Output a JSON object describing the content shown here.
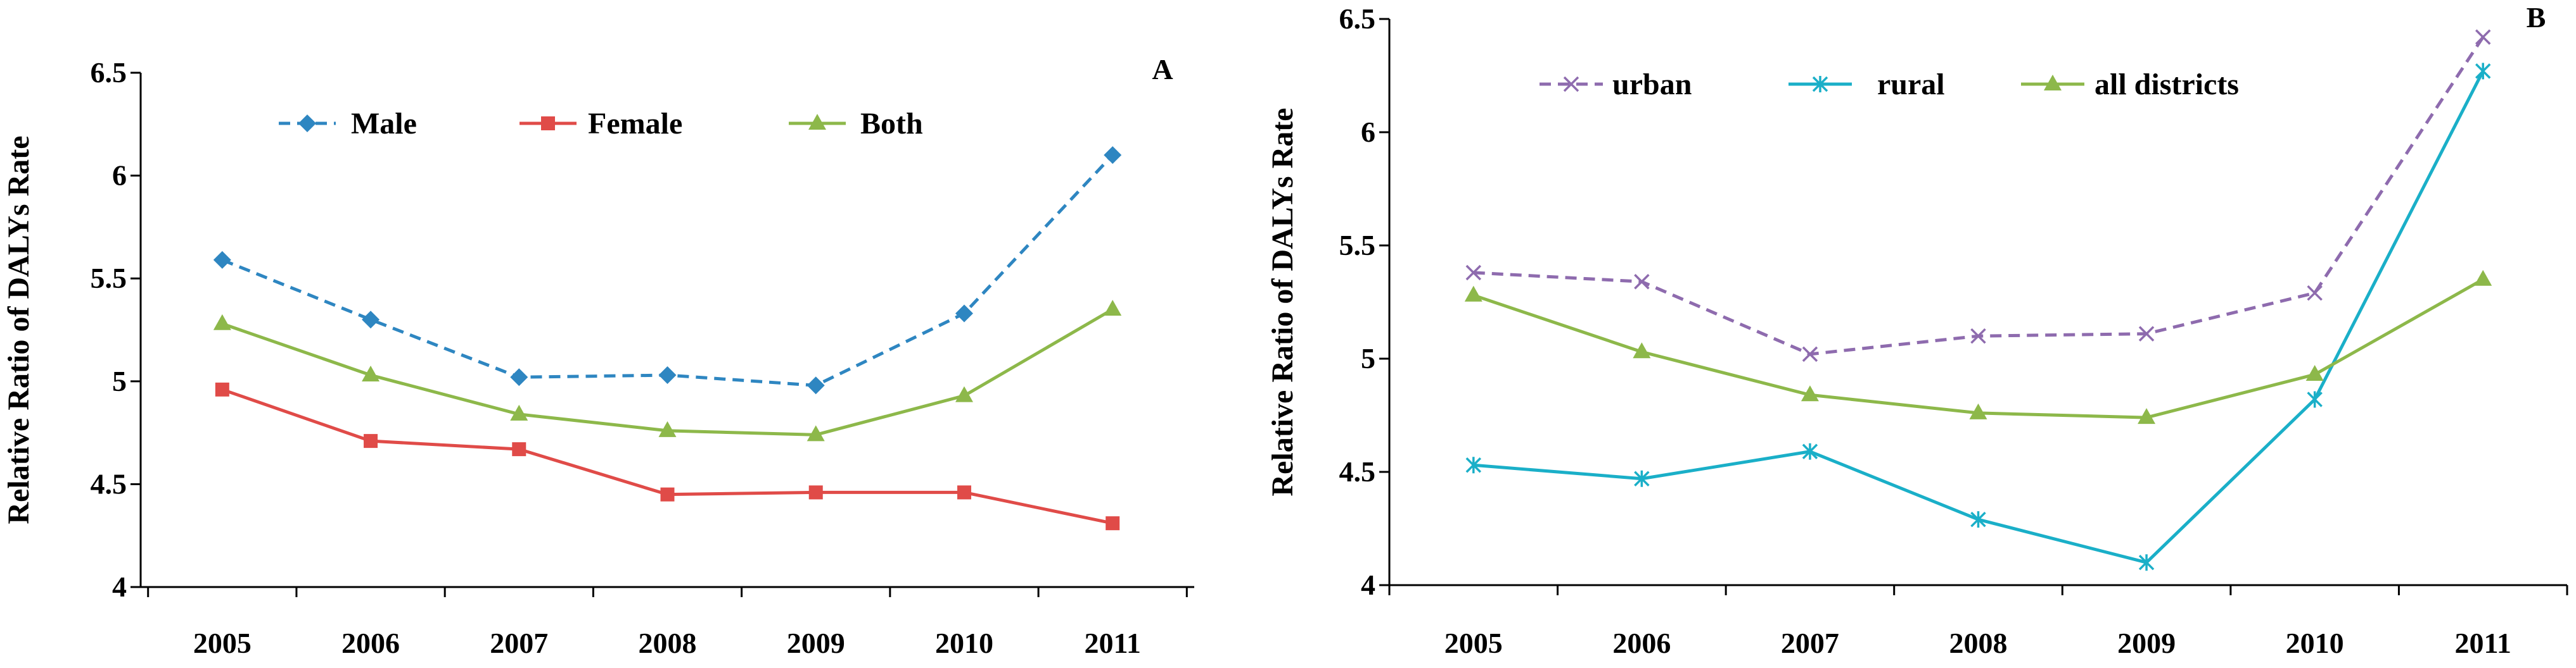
{
  "chart_data": [
    {
      "type": "line",
      "panel_label": "A",
      "ylabel": "Relative Ratio of DALYs  Rate",
      "xlabel": "",
      "categories": [
        "2005",
        "2006",
        "2007",
        "2008",
        "2009",
        "2010",
        "2011"
      ],
      "ylim": [
        4,
        6.5
      ],
      "yticks": [
        4,
        4.5,
        5,
        5.5,
        6,
        6.5
      ],
      "ytick_labels": [
        "4",
        "4.5",
        "5",
        "5.5",
        "6",
        "6.5"
      ],
      "legend_position": "top",
      "grid": false,
      "series": [
        {
          "name": "Male",
          "values": [
            5.59,
            5.3,
            5.02,
            5.03,
            4.98,
            5.33,
            6.1
          ],
          "color": "#2E86C1",
          "dash": "dashed",
          "marker": "diamond"
        },
        {
          "name": "Female",
          "values": [
            4.96,
            4.71,
            4.67,
            4.45,
            4.46,
            4.46,
            4.31
          ],
          "color": "#E04B48",
          "dash": "solid",
          "marker": "square"
        },
        {
          "name": "Both",
          "values": [
            5.28,
            5.03,
            4.84,
            4.76,
            4.74,
            4.93,
            5.35
          ],
          "color": "#8DB84A",
          "dash": "solid",
          "marker": "triangle"
        }
      ]
    },
    {
      "type": "line",
      "panel_label": "B",
      "ylabel": "Relative Ratio of DALYs  Rate",
      "xlabel": "",
      "categories": [
        "2005",
        "2006",
        "2007",
        "2008",
        "2009",
        "2010",
        "2011"
      ],
      "ylim": [
        4,
        6.5
      ],
      "yticks": [
        4,
        4.5,
        5,
        5.5,
        6,
        6.5
      ],
      "ytick_labels": [
        "4",
        "4.5",
        "5",
        "5.5",
        "6",
        "6.5"
      ],
      "legend_position": "top",
      "grid": false,
      "series": [
        {
          "name": "urban",
          "values": [
            5.38,
            5.34,
            5.02,
            5.1,
            5.11,
            5.29,
            6.42
          ],
          "color": "#8E6BAE",
          "dash": "dashed",
          "marker": "x"
        },
        {
          "name": "rural",
          "values": [
            4.53,
            4.47,
            4.59,
            4.29,
            4.1,
            4.82,
            6.27
          ],
          "color": "#1AAFC8",
          "dash": "solid",
          "marker": "star"
        },
        {
          "name": "all districts",
          "values": [
            5.28,
            5.03,
            4.84,
            4.76,
            4.74,
            4.93,
            5.35
          ],
          "color": "#8DB84A",
          "dash": "solid",
          "marker": "triangle"
        }
      ]
    }
  ]
}
